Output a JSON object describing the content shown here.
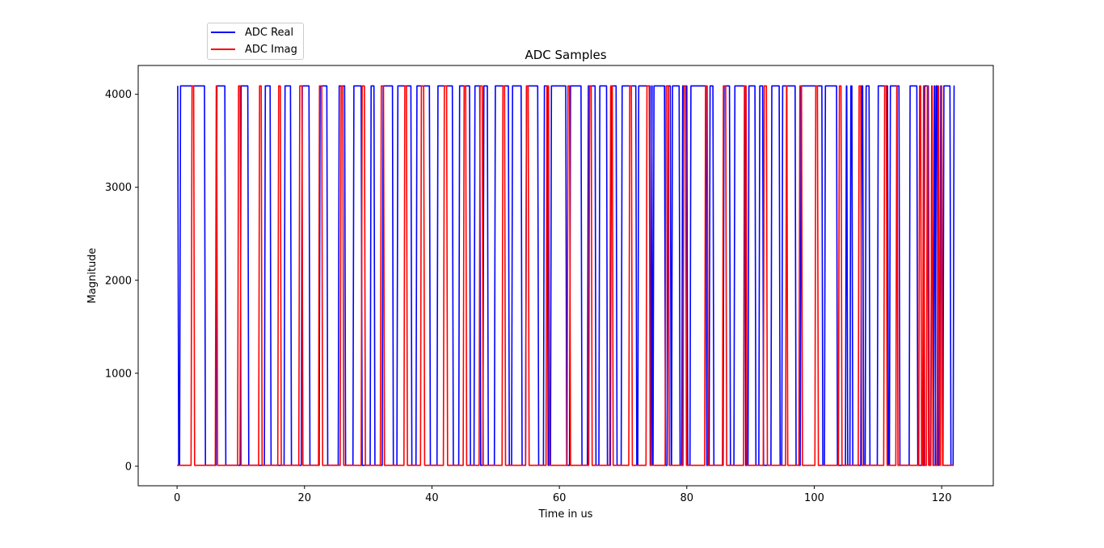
{
  "chart_data": {
    "type": "line",
    "title": "ADC Samples",
    "xlabel": "Time in us",
    "ylabel": "Magnitude",
    "xlim": [
      -6.1,
      128.1
    ],
    "ylim": [
      -210,
      4310
    ],
    "xticks": [
      0,
      20,
      40,
      60,
      80,
      100,
      120
    ],
    "yticks": [
      0,
      1000,
      2000,
      3000,
      4000
    ],
    "grid": false,
    "legend_position": "upper-left",
    "series": [
      {
        "name": "ADC Real",
        "color": "#0000ff",
        "edges": [
          0.1,
          0.4,
          4.3,
          6.1,
          7.5,
          9.9,
          11.1,
          13.7,
          14.6,
          16.8,
          17.8,
          19.5,
          20.7,
          22.3,
          23.5,
          25.3,
          26.3,
          27.6,
          28.9,
          30.3,
          30.9,
          32.2,
          33.8,
          34.5,
          36.7,
          37.5,
          39.6,
          40.8,
          43.2,
          44.2,
          45.9,
          46.6,
          47.5,
          48.0,
          48.7,
          49.8,
          52.0,
          52.5,
          54.0,
          54.7,
          56.6,
          57.5,
          58.1,
          58.6,
          61.0,
          61.6,
          63.4,
          64.4,
          65.6,
          66.2,
          67.4,
          68.0,
          68.9,
          69.7,
          72.0,
          72.3,
          74.2,
          74.4,
          74.5,
          74.7,
          76.5,
          76.9,
          77.4,
          77.6,
          78.8,
          79.2,
          80.0,
          80.5,
          83.0,
          83.5,
          84.1,
          85.7,
          86.7,
          87.4,
          89.1,
          89.6,
          90.7,
          91.3,
          91.9,
          93.2,
          94.5,
          94.9,
          97.0,
          97.8,
          101.2,
          101.6,
          103.5,
          104.9,
          105.1,
          105.6,
          105.9,
          107.3,
          107.6,
          108.0,
          108.6,
          109.9,
          111.5,
          111.8,
          113.3,
          114.9,
          116.1,
          117.2,
          117.9,
          118.3,
          118.5,
          118.7,
          118.9,
          119.0,
          119.3,
          119.7,
          120.0,
          120.2,
          121.3,
          121.8
        ],
        "high_value": 4090,
        "low_value": 10,
        "starts_high": true
      },
      {
        "name": "ADC Imag",
        "color": "#ff0000",
        "edges": [
          2.2,
          2.6,
          6.0,
          6.2,
          9.5,
          9.9,
          12.8,
          13.2,
          15.8,
          16.2,
          19.1,
          19.6,
          22.2,
          22.7,
          25.6,
          26.0,
          28.9,
          29.4,
          31.9,
          32.4,
          35.6,
          36.0,
          38.2,
          38.7,
          41.8,
          42.3,
          44.9,
          45.3,
          47.4,
          47.9,
          51.0,
          51.4,
          54.7,
          55.1,
          57.9,
          58.3,
          61.2,
          61.6,
          64.6,
          65.0,
          67.9,
          68.3,
          70.9,
          71.3,
          73.6,
          74.1,
          76.6,
          77.1,
          79.4,
          79.8,
          82.8,
          83.2,
          85.6,
          86.1,
          88.9,
          89.3,
          92.0,
          92.5,
          95.5,
          95.7,
          97.6,
          98.0,
          100.1,
          100.5,
          103.8,
          104.2,
          106.9,
          107.3,
          110.9,
          111.3,
          112.8,
          113.0,
          116.4,
          116.7,
          117.0,
          117.2,
          117.6,
          117.8,
          118.3,
          118.5,
          119.3,
          119.5,
          119.8,
          120.0
        ],
        "high_value": 4090,
        "low_value": 10,
        "starts_high": false
      }
    ]
  }
}
